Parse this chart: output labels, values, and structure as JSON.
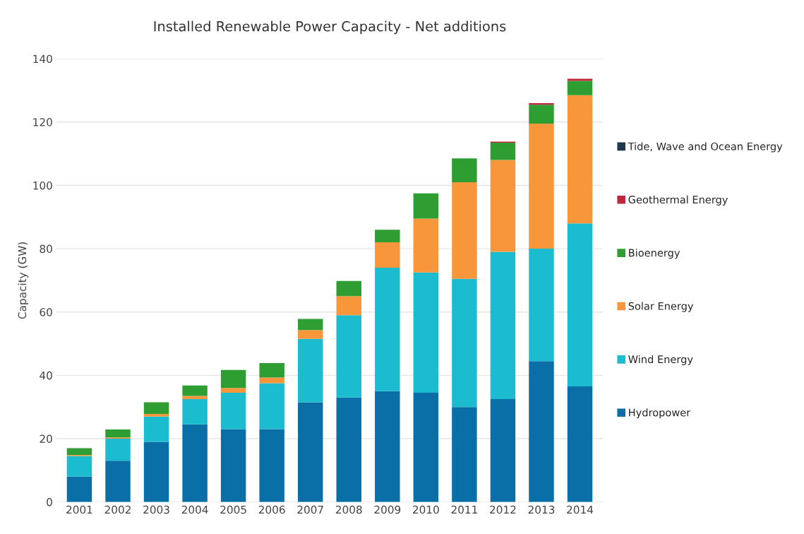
{
  "chart_data": {
    "type": "bar",
    "title": "Installed Renewable Power Capacity - Net additions",
    "ylabel": "Capacity (GW)",
    "categories": [
      "2001",
      "2002",
      "2003",
      "2004",
      "2005",
      "2006",
      "2007",
      "2008",
      "2009",
      "2010",
      "2011",
      "2012",
      "2013",
      "2014"
    ],
    "stacked": true,
    "ylim": [
      0,
      140
    ],
    "yticks": [
      0,
      20,
      40,
      60,
      80,
      100,
      120,
      140
    ],
    "grid": "y",
    "legend": "right",
    "series": [
      {
        "name": "Hydropower",
        "color": "#0a6fa6",
        "values": [
          8,
          13,
          19,
          24.5,
          23,
          23,
          31.5,
          33,
          35,
          34.5,
          30,
          32.5,
          44.5,
          36.5
        ]
      },
      {
        "name": "Wind Energy",
        "color": "#1cbcd0",
        "values": [
          6.5,
          7,
          8,
          8,
          11.5,
          14.5,
          20,
          26,
          39,
          38,
          40.5,
          46.5,
          35.5,
          51.5
        ]
      },
      {
        "name": "Solar Energy",
        "color": "#f7963a",
        "values": [
          0.3,
          0.4,
          0.8,
          1,
          1.5,
          1.8,
          2.8,
          6,
          8,
          17,
          30.5,
          29,
          39.5,
          40.5
        ]
      },
      {
        "name": "Bioenergy",
        "color": "#2e9e32",
        "values": [
          2.2,
          2.5,
          3.7,
          3.3,
          5.7,
          4.6,
          3.5,
          4.8,
          4,
          8,
          7.5,
          5.5,
          6,
          4.5
        ]
      },
      {
        "name": "Geothermal Energy",
        "color": "#c0283a",
        "values": [
          null,
          null,
          null,
          null,
          null,
          null,
          null,
          null,
          null,
          null,
          null,
          0.3,
          0.5,
          0.7
        ]
      },
      {
        "name": "Tide, Wave and Ocean Energy",
        "color": "#1d3a4a",
        "values": [
          null,
          null,
          null,
          null,
          null,
          null,
          null,
          null,
          null,
          null,
          null,
          null,
          null,
          null
        ]
      }
    ]
  }
}
